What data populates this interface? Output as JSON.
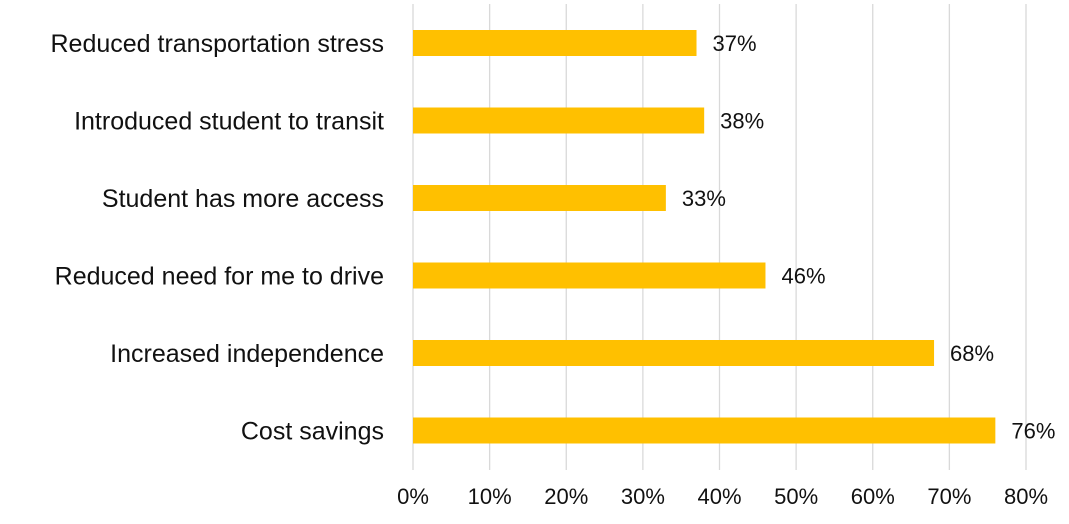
{
  "chart_data": {
    "type": "bar",
    "orientation": "horizontal",
    "categories": [
      "Reduced transportation stress",
      "Introduced student to transit",
      "Student has more access",
      "Reduced need for me to drive",
      "Increased  independence",
      "Cost savings"
    ],
    "values": [
      37,
      38,
      33,
      46,
      68,
      76
    ],
    "data_labels": [
      "37%",
      "38%",
      "33%",
      "46%",
      "68%",
      "76%"
    ],
    "x_ticks": [
      0,
      10,
      20,
      30,
      40,
      50,
      60,
      70,
      80
    ],
    "x_tick_labels": [
      "0%",
      "10%",
      "20%",
      "30%",
      "40%",
      "50%",
      "60%",
      "70%",
      "80%"
    ],
    "xlim": [
      0,
      80
    ],
    "grid": true,
    "bar_color": "#FFC000",
    "grid_color": "#D9D9D9",
    "title": "",
    "xlabel": "",
    "ylabel": ""
  }
}
